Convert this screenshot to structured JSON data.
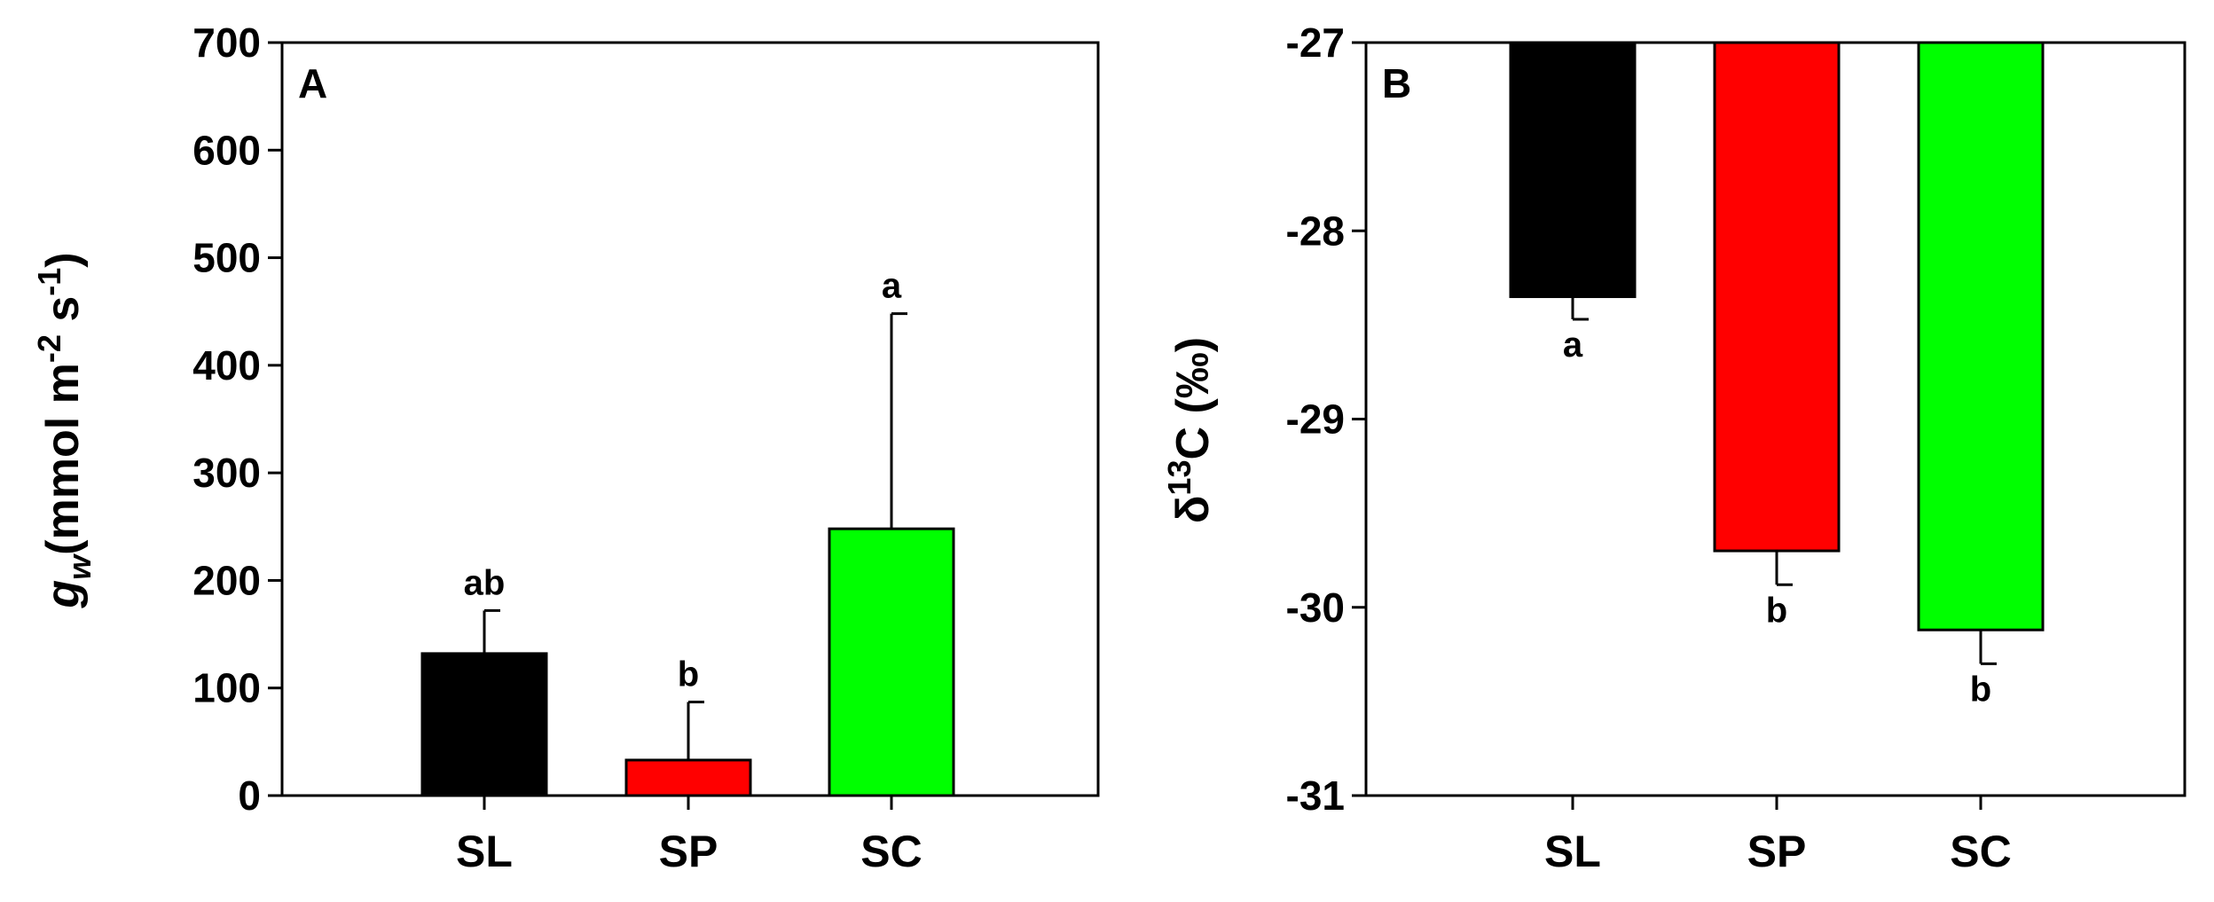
{
  "chart_data": [
    {
      "type": "bar",
      "panel_label": "A",
      "categories": [
        "SL",
        "SP",
        "SC"
      ],
      "values": [
        132,
        33,
        248
      ],
      "errors": [
        40,
        54,
        200
      ],
      "error_direction": "up",
      "significance": [
        "ab",
        "b",
        "a"
      ],
      "colors": [
        "#000000",
        "#ff0000",
        "#00ff00"
      ],
      "ylabel": {
        "symbol": "g",
        "subscript": "w",
        "pre": "(mmol m",
        "sup1": "-2",
        "mid": " s",
        "sup2": "-1",
        "post": ")"
      },
      "ylim": [
        0,
        700
      ],
      "yticks": [
        0,
        100,
        200,
        300,
        400,
        500,
        600,
        700
      ],
      "ytick_labels": [
        "0",
        "100",
        "200",
        "300",
        "400",
        "500",
        "600",
        "700"
      ],
      "grid": false
    },
    {
      "type": "bar",
      "panel_label": "B",
      "categories": [
        "SL",
        "SP",
        "SC"
      ],
      "values": [
        -28.35,
        -29.7,
        -30.12
      ],
      "errors": [
        0.12,
        0.18,
        0.18
      ],
      "error_direction": "down",
      "baseline": -27,
      "significance": [
        "a",
        "b",
        "b"
      ],
      "colors": [
        "#000000",
        "#ff0000",
        "#00ff00"
      ],
      "ylabel": {
        "pre": "δ",
        "sup": "13",
        "post": "C (‰)"
      },
      "ylim": [
        -31,
        -27
      ],
      "yticks": [
        -31,
        -30,
        -29,
        -28,
        -27
      ],
      "ytick_labels": [
        "-31",
        "-30",
        "-29",
        "-28",
        "-27"
      ],
      "grid": false
    }
  ]
}
